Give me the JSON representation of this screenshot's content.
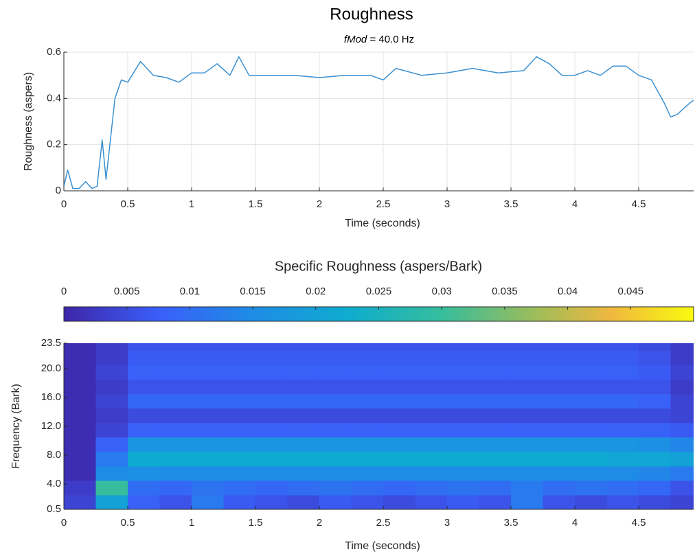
{
  "chart_data": [
    {
      "type": "line",
      "title": "Roughness",
      "subtitle_symbol": "fMod",
      "subtitle": "= 40.0 Hz",
      "xlabel": "Time (seconds)",
      "ylabel": "Roughness (aspers)",
      "x": [
        0,
        0.03,
        0.07,
        0.12,
        0.17,
        0.22,
        0.26,
        0.3,
        0.33,
        0.36,
        0.4,
        0.45,
        0.5,
        0.6,
        0.7,
        0.8,
        0.9,
        1.0,
        1.1,
        1.2,
        1.3,
        1.37,
        1.45,
        1.6,
        1.8,
        2.0,
        2.2,
        2.4,
        2.5,
        2.6,
        2.8,
        3.0,
        3.2,
        3.4,
        3.6,
        3.7,
        3.8,
        3.9,
        4.0,
        4.1,
        4.2,
        4.3,
        4.4,
        4.5,
        4.6,
        4.7,
        4.75,
        4.8,
        4.9,
        4.95
      ],
      "values": [
        0.02,
        0.09,
        0.01,
        0.01,
        0.04,
        0.01,
        0.02,
        0.22,
        0.05,
        0.2,
        0.4,
        0.48,
        0.47,
        0.56,
        0.5,
        0.49,
        0.47,
        0.51,
        0.51,
        0.55,
        0.5,
        0.58,
        0.5,
        0.5,
        0.5,
        0.49,
        0.5,
        0.5,
        0.48,
        0.53,
        0.5,
        0.51,
        0.53,
        0.51,
        0.52,
        0.58,
        0.55,
        0.5,
        0.5,
        0.52,
        0.5,
        0.54,
        0.54,
        0.5,
        0.48,
        0.38,
        0.32,
        0.33,
        0.38,
        0.4
      ],
      "color": "#3a8fd0",
      "grid": true,
      "xlim": [
        0,
        4.93
      ],
      "xticks": [
        0,
        0.5,
        1,
        1.5,
        2,
        2.5,
        3,
        3.5,
        4,
        4.5
      ],
      "ylim": [
        0,
        0.6
      ],
      "yticks": [
        0,
        0.2,
        0.4,
        0.6
      ]
    },
    {
      "type": "heatmap",
      "colorbar_label": "Specific Roughness (aspers/Bark)",
      "colormap": "parula",
      "clim": [
        0,
        0.05
      ],
      "cticks": [
        0,
        0.005,
        0.01,
        0.015,
        0.02,
        0.025,
        0.03,
        0.035,
        0.04,
        0.045
      ],
      "xlabel": "Time (seconds)",
      "ylabel": "Frequency (Bark)",
      "xlim": [
        0,
        4.93
      ],
      "xticks": [
        0,
        0.5,
        1,
        1.5,
        2,
        2.5,
        3,
        3.5,
        4,
        4.5
      ],
      "ylim": [
        0.5,
        23.5
      ],
      "yticks": [
        0.5,
        {
          "value": 4,
          "label": "4.0"
        },
        {
          "value": 8,
          "label": "8.0"
        },
        {
          "value": 12,
          "label": "12.0"
        },
        {
          "value": 16,
          "label": "16.0"
        },
        {
          "value": 20,
          "label": "20.0"
        },
        23.5
      ],
      "x": [
        0.125,
        0.375,
        0.625,
        0.875,
        1.125,
        1.375,
        1.625,
        1.875,
        2.125,
        2.375,
        2.625,
        2.875,
        3.125,
        3.375,
        3.625,
        3.875,
        4.125,
        4.375,
        4.625,
        4.875
      ],
      "y": [
        1.5,
        3.5,
        5.5,
        7.5,
        9.5,
        11.5,
        13.5,
        15.5,
        17.5,
        19.5,
        21.5,
        23.5
      ],
      "z": [
        [
          0.004,
          0.02,
          0.008,
          0.006,
          0.012,
          0.007,
          0.006,
          0.005,
          0.007,
          0.006,
          0.005,
          0.006,
          0.007,
          0.006,
          0.012,
          0.006,
          0.005,
          0.006,
          0.005,
          0.004
        ],
        [
          0.003,
          0.03,
          0.01,
          0.009,
          0.011,
          0.01,
          0.009,
          0.01,
          0.011,
          0.01,
          0.009,
          0.01,
          0.011,
          0.01,
          0.012,
          0.01,
          0.011,
          0.01,
          0.009,
          0.006
        ],
        [
          0.001,
          0.015,
          0.016,
          0.015,
          0.015,
          0.015,
          0.015,
          0.015,
          0.015,
          0.015,
          0.015,
          0.015,
          0.015,
          0.015,
          0.015,
          0.015,
          0.015,
          0.015,
          0.014,
          0.012
        ],
        [
          0.001,
          0.012,
          0.022,
          0.022,
          0.022,
          0.022,
          0.022,
          0.022,
          0.022,
          0.022,
          0.022,
          0.022,
          0.022,
          0.022,
          0.022,
          0.022,
          0.022,
          0.021,
          0.021,
          0.02
        ],
        [
          0.001,
          0.008,
          0.017,
          0.017,
          0.017,
          0.017,
          0.017,
          0.017,
          0.017,
          0.017,
          0.017,
          0.017,
          0.017,
          0.017,
          0.017,
          0.017,
          0.017,
          0.017,
          0.016,
          0.014
        ],
        [
          0.001,
          0.004,
          0.008,
          0.008,
          0.008,
          0.008,
          0.008,
          0.008,
          0.008,
          0.008,
          0.008,
          0.008,
          0.008,
          0.008,
          0.008,
          0.008,
          0.008,
          0.008,
          0.008,
          0.007
        ],
        [
          0.001,
          0.003,
          0.005,
          0.005,
          0.005,
          0.005,
          0.005,
          0.005,
          0.005,
          0.005,
          0.005,
          0.005,
          0.005,
          0.005,
          0.005,
          0.005,
          0.005,
          0.005,
          0.005,
          0.004
        ],
        [
          0.001,
          0.004,
          0.009,
          0.009,
          0.009,
          0.009,
          0.009,
          0.009,
          0.009,
          0.009,
          0.009,
          0.009,
          0.009,
          0.009,
          0.009,
          0.009,
          0.009,
          0.009,
          0.008,
          0.004
        ],
        [
          0.001,
          0.003,
          0.006,
          0.006,
          0.006,
          0.006,
          0.006,
          0.006,
          0.006,
          0.006,
          0.006,
          0.006,
          0.006,
          0.006,
          0.006,
          0.006,
          0.006,
          0.006,
          0.006,
          0.003
        ],
        [
          0.001,
          0.004,
          0.008,
          0.008,
          0.008,
          0.008,
          0.008,
          0.008,
          0.008,
          0.008,
          0.008,
          0.008,
          0.008,
          0.008,
          0.008,
          0.008,
          0.008,
          0.008,
          0.007,
          0.004
        ],
        [
          0.001,
          0.003,
          0.007,
          0.007,
          0.007,
          0.007,
          0.007,
          0.007,
          0.007,
          0.007,
          0.007,
          0.007,
          0.007,
          0.007,
          0.007,
          0.007,
          0.007,
          0.007,
          0.006,
          0.003
        ],
        [
          0.001,
          0.003,
          0.006,
          0.006,
          0.006,
          0.006,
          0.006,
          0.006,
          0.006,
          0.006,
          0.006,
          0.006,
          0.006,
          0.006,
          0.006,
          0.006,
          0.006,
          0.006,
          0.005,
          0.003
        ]
      ]
    }
  ]
}
